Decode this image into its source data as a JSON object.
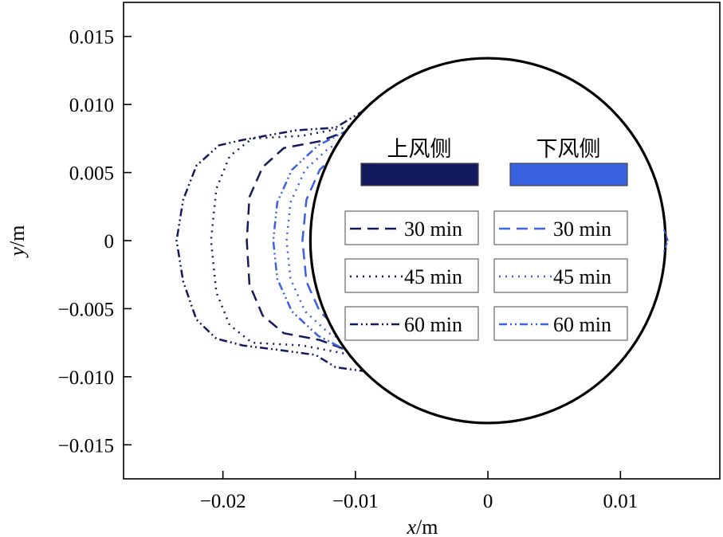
{
  "chart_data": {
    "type": "line",
    "title": "",
    "xlabel_var": "x",
    "xlabel_unit": "/m",
    "ylabel_var": "y",
    "ylabel_unit": "/m",
    "xlim": [
      -0.0275,
      0.0175
    ],
    "ylim": [
      -0.0175,
      0.0175
    ],
    "xticks": [
      -0.02,
      -0.01,
      0,
      0.01
    ],
    "xtick_labels": [
      "−0.02",
      "−0.01",
      "0",
      "0.01"
    ],
    "yticks": [
      0.015,
      0.01,
      0.005,
      0,
      -0.005,
      -0.01,
      -0.015
    ],
    "ytick_labels": [
      "0.015",
      "0.010",
      "0.005",
      "0",
      "−0.005",
      "−0.010",
      "−0.015"
    ],
    "grid": false,
    "legend_position": "inside-right",
    "cylinder": {
      "center": [
        0,
        0
      ],
      "radius": 0.0134
    },
    "legend": {
      "groups": [
        {
          "title": "上风侧",
          "color": "#141a5e",
          "entries": [
            "30 min",
            "45 min",
            "60 min"
          ]
        },
        {
          "title": "下风侧",
          "color": "#3a62e0",
          "entries": [
            "30 min",
            "45 min",
            "60 min"
          ]
        }
      ]
    },
    "series": [
      {
        "name": "上风侧 30 min",
        "color": "#141a5e",
        "dash": "14,8",
        "width": 2.5,
        "points": [
          [
            -0.0077,
            0.0092
          ],
          [
            -0.0102,
            0.0082
          ],
          [
            -0.0127,
            0.0073
          ],
          [
            -0.0154,
            0.0068
          ],
          [
            -0.017,
            0.0054
          ],
          [
            -0.018,
            0.0032
          ],
          [
            -0.0182,
            0.0
          ],
          [
            -0.018,
            -0.0032
          ],
          [
            -0.017,
            -0.0055
          ],
          [
            -0.0154,
            -0.0068
          ],
          [
            -0.0127,
            -0.0073
          ],
          [
            -0.0102,
            -0.0082
          ],
          [
            -0.0077,
            -0.0092
          ]
        ]
      },
      {
        "name": "上风侧 45 min",
        "color": "#141a5e",
        "dash": "2,6",
        "width": 2.5,
        "points": [
          [
            -0.0077,
            0.0092
          ],
          [
            -0.0108,
            0.0083
          ],
          [
            -0.014,
            0.0077
          ],
          [
            -0.0178,
            0.0075
          ],
          [
            -0.0195,
            0.0062
          ],
          [
            -0.0205,
            0.0038
          ],
          [
            -0.0209,
            0.0
          ],
          [
            -0.0205,
            -0.0038
          ],
          [
            -0.0195,
            -0.0062
          ],
          [
            -0.0178,
            -0.0075
          ],
          [
            -0.014,
            -0.0077
          ],
          [
            -0.0108,
            -0.0083
          ],
          [
            -0.0077,
            -0.0092
          ]
        ]
      },
      {
        "name": "上风侧 60 min",
        "color": "#141a5e",
        "dash": "10,4,2,4,2,4",
        "width": 2.5,
        "points": [
          [
            -0.0093,
            0.0096
          ],
          [
            -0.0115,
            0.0083
          ],
          [
            -0.0145,
            0.0081
          ],
          [
            -0.0185,
            0.0074
          ],
          [
            -0.0203,
            0.007
          ],
          [
            -0.022,
            0.0055
          ],
          [
            -0.023,
            0.003
          ],
          [
            -0.0235,
            0.0
          ],
          [
            -0.023,
            -0.003
          ],
          [
            -0.022,
            -0.0058
          ],
          [
            -0.0205,
            -0.0072
          ],
          [
            -0.0185,
            -0.0077
          ],
          [
            -0.016,
            -0.008
          ],
          [
            -0.013,
            -0.0084
          ],
          [
            -0.0115,
            -0.0093
          ],
          [
            -0.0093,
            -0.0096
          ]
        ]
      },
      {
        "name": "下风侧 30 min",
        "color": "#3a62e0",
        "dash": "14,8",
        "width": 2.5,
        "points": [
          [
            -0.007,
            0.0092
          ],
          [
            -0.0088,
            0.0079
          ],
          [
            -0.011,
            0.0068
          ],
          [
            -0.0127,
            0.0052
          ],
          [
            -0.0137,
            0.003
          ],
          [
            -0.014,
            0.0
          ],
          [
            -0.0137,
            -0.003
          ],
          [
            -0.0127,
            -0.0052
          ],
          [
            -0.011,
            -0.0068
          ],
          [
            -0.0088,
            -0.0079
          ],
          [
            -0.007,
            -0.0092
          ]
        ]
      },
      {
        "name": "下风侧 45 min",
        "color": "#3a62e0",
        "dash": "2,6",
        "width": 2.5,
        "points": [
          [
            -0.007,
            0.0092
          ],
          [
            -0.0095,
            0.008
          ],
          [
            -0.012,
            0.0068
          ],
          [
            -0.0138,
            0.0052
          ],
          [
            -0.0149,
            0.0028
          ],
          [
            -0.0152,
            0.0
          ],
          [
            -0.0149,
            -0.0028
          ],
          [
            -0.0138,
            -0.0052
          ],
          [
            -0.012,
            -0.0068
          ],
          [
            -0.0095,
            -0.008
          ],
          [
            -0.007,
            -0.0092
          ]
        ]
      },
      {
        "name": "下风侧 60 min",
        "color": "#3a62e0",
        "dash": "10,4,2,4,2,4",
        "width": 2.5,
        "points": [
          [
            -0.0077,
            0.0094
          ],
          [
            -0.01,
            0.0084
          ],
          [
            -0.0128,
            0.007
          ],
          [
            -0.0148,
            0.0052
          ],
          [
            -0.0159,
            0.0028
          ],
          [
            -0.0162,
            0.0
          ],
          [
            -0.0159,
            -0.0028
          ],
          [
            -0.0148,
            -0.0052
          ],
          [
            -0.0128,
            -0.007
          ],
          [
            -0.01,
            -0.0084
          ],
          [
            -0.0077,
            -0.0094
          ]
        ]
      }
    ]
  }
}
